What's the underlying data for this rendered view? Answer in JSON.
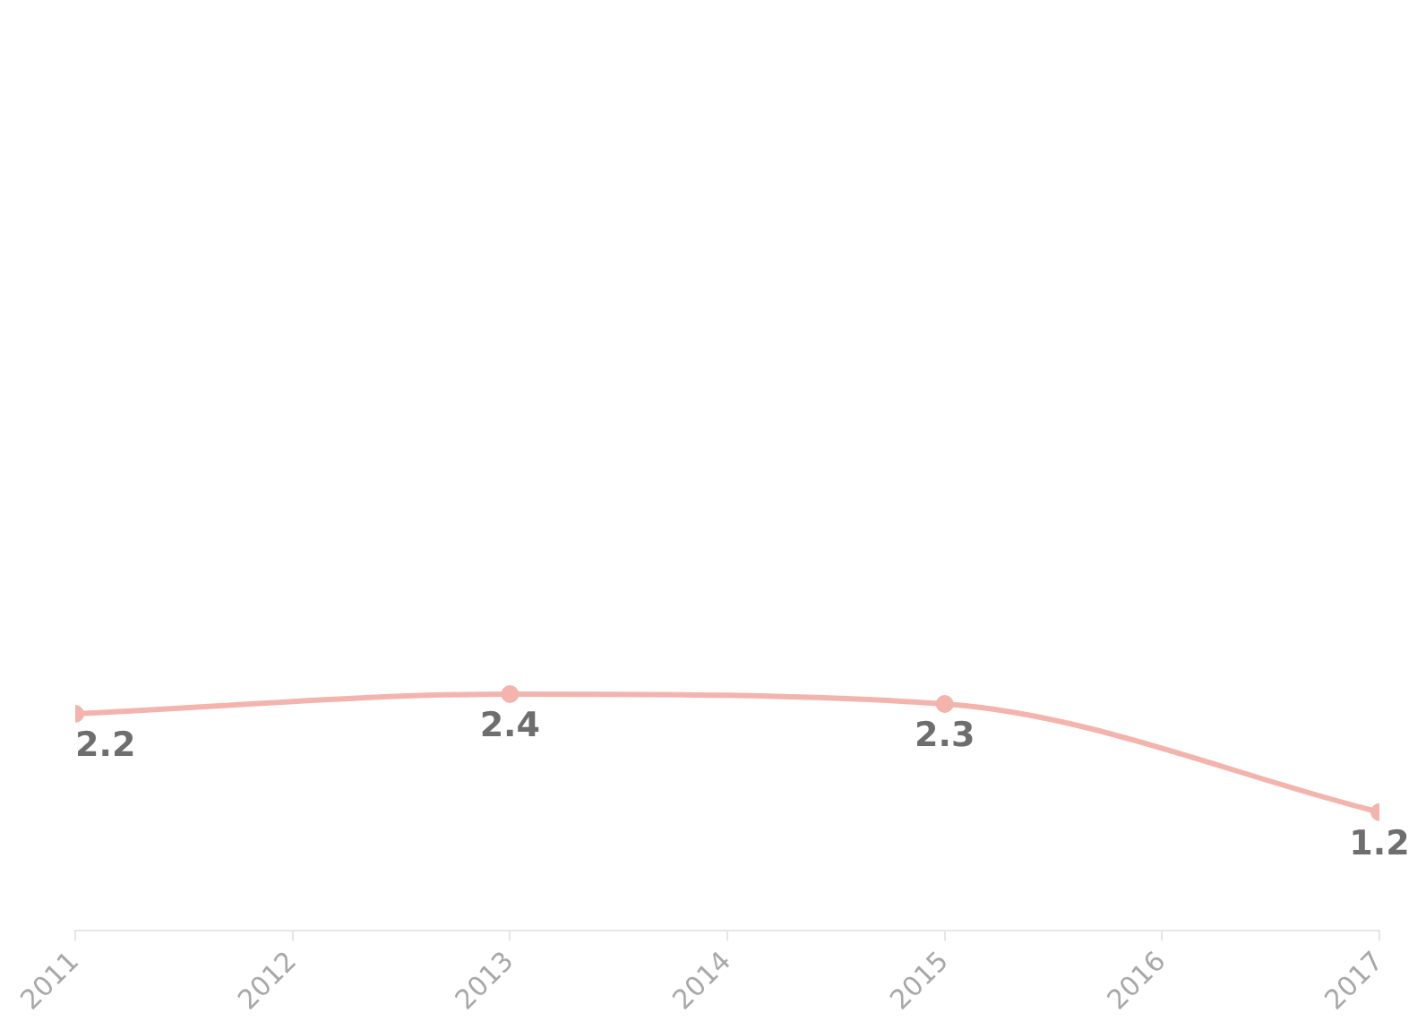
{
  "chart_data": {
    "type": "line",
    "x": [
      2011,
      2013,
      2015,
      2017
    ],
    "series": [
      {
        "color": "#f4b4ae",
        "values": [
          2.2,
          2.4,
          2.3,
          1.2
        ]
      }
    ],
    "xlim": [
      2011,
      2017
    ],
    "xticks": [
      2011,
      2012,
      2013,
      2014,
      2015,
      2016,
      2017
    ],
    "tick_labels": "x",
    "data_labels": true,
    "grid": false,
    "legend": false,
    "marker": "circle",
    "line_style": "solid"
  }
}
